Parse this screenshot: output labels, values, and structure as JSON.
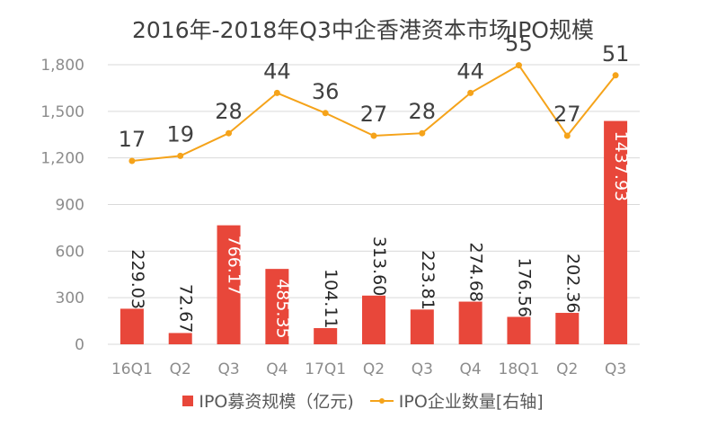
{
  "title": "2016年-2018年Q3中企香港资本市场IPO规模",
  "legend": {
    "bar_label": "IPO募资规模（亿元)",
    "line_label": "IPO企业数量[右轴]"
  },
  "colors": {
    "bar": "#E8473A",
    "line": "#F5A31A",
    "grid": "#D9D9D9",
    "axis_text": "#8C8C8C",
    "label_text": "#262626"
  },
  "chart_data": {
    "type": "bar",
    "title": "2016年-2018年Q3中企香港资本市场IPO规模",
    "categories": [
      "16Q1",
      "Q2",
      "Q3",
      "Q4",
      "17Q1",
      "Q2",
      "Q3",
      "Q4",
      "18Q1",
      "Q2",
      "Q3"
    ],
    "ylim": [
      0,
      1800
    ],
    "yticks": [
      "0",
      "300",
      "600",
      "900",
      "1,200",
      "1,500",
      "1,800"
    ],
    "grid": true,
    "legend_position": "bottom",
    "series": [
      {
        "name": "IPO募资规模（亿元)",
        "type": "bar",
        "values": [
          229.03,
          72.67,
          766.17,
          485.35,
          104.11,
          313.6,
          223.81,
          274.68,
          176.56,
          202.36,
          1437.93
        ],
        "labels": [
          "229.03",
          "72.67",
          "766.17",
          "485.35",
          "104.11",
          "313.60",
          "223.81",
          "274.68",
          "176.56",
          "202.36",
          "1437.93"
        ]
      },
      {
        "name": "IPO企业数量[右轴]",
        "type": "line",
        "axis": "right",
        "values": [
          17,
          19,
          28,
          44,
          36,
          27,
          28,
          44,
          55,
          27,
          51
        ],
        "labels": [
          "17",
          "19",
          "28",
          "44",
          "36",
          "27",
          "28",
          "44",
          "55",
          "27",
          "51"
        ]
      }
    ]
  }
}
